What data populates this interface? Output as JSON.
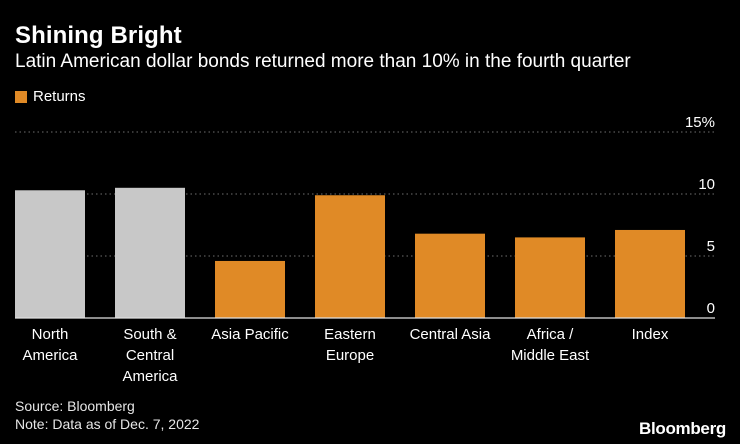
{
  "header": {
    "title": "Shining Bright",
    "subtitle": "Latin American dollar bonds returned more than 10% in the fourth quarter"
  },
  "legend": {
    "label": "Returns",
    "color": "#e08a26"
  },
  "footer": {
    "source": "Source: Bloomberg",
    "note": "Note: Data as of Dec. 7, 2022",
    "brand": "Bloomberg"
  },
  "chart_data": {
    "type": "bar",
    "categories": [
      [
        "North",
        "America"
      ],
      [
        "South &",
        "Central",
        "America"
      ],
      [
        "Asia Pacific"
      ],
      [
        "Eastern",
        "Europe"
      ],
      [
        "Central Asia"
      ],
      [
        "Africa /",
        "Middle East"
      ],
      [
        "Index"
      ]
    ],
    "values": [
      10.3,
      10.5,
      4.6,
      9.9,
      6.8,
      6.5,
      7.1
    ],
    "bar_colors": [
      "#c8c8c8",
      "#c8c8c8",
      "#e08a26",
      "#e08a26",
      "#e08a26",
      "#e08a26",
      "#e08a26"
    ],
    "title": "Shining Bright",
    "ylim": [
      0,
      15
    ],
    "yticks": [
      0,
      5,
      10,
      15
    ],
    "ytick_labels": [
      "0",
      "5",
      "10",
      "15%"
    ],
    "y_axis_position": "right",
    "grid": true,
    "legend_position": "top-left",
    "series": [
      {
        "name": "Returns",
        "color": "#e08a26"
      }
    ]
  }
}
